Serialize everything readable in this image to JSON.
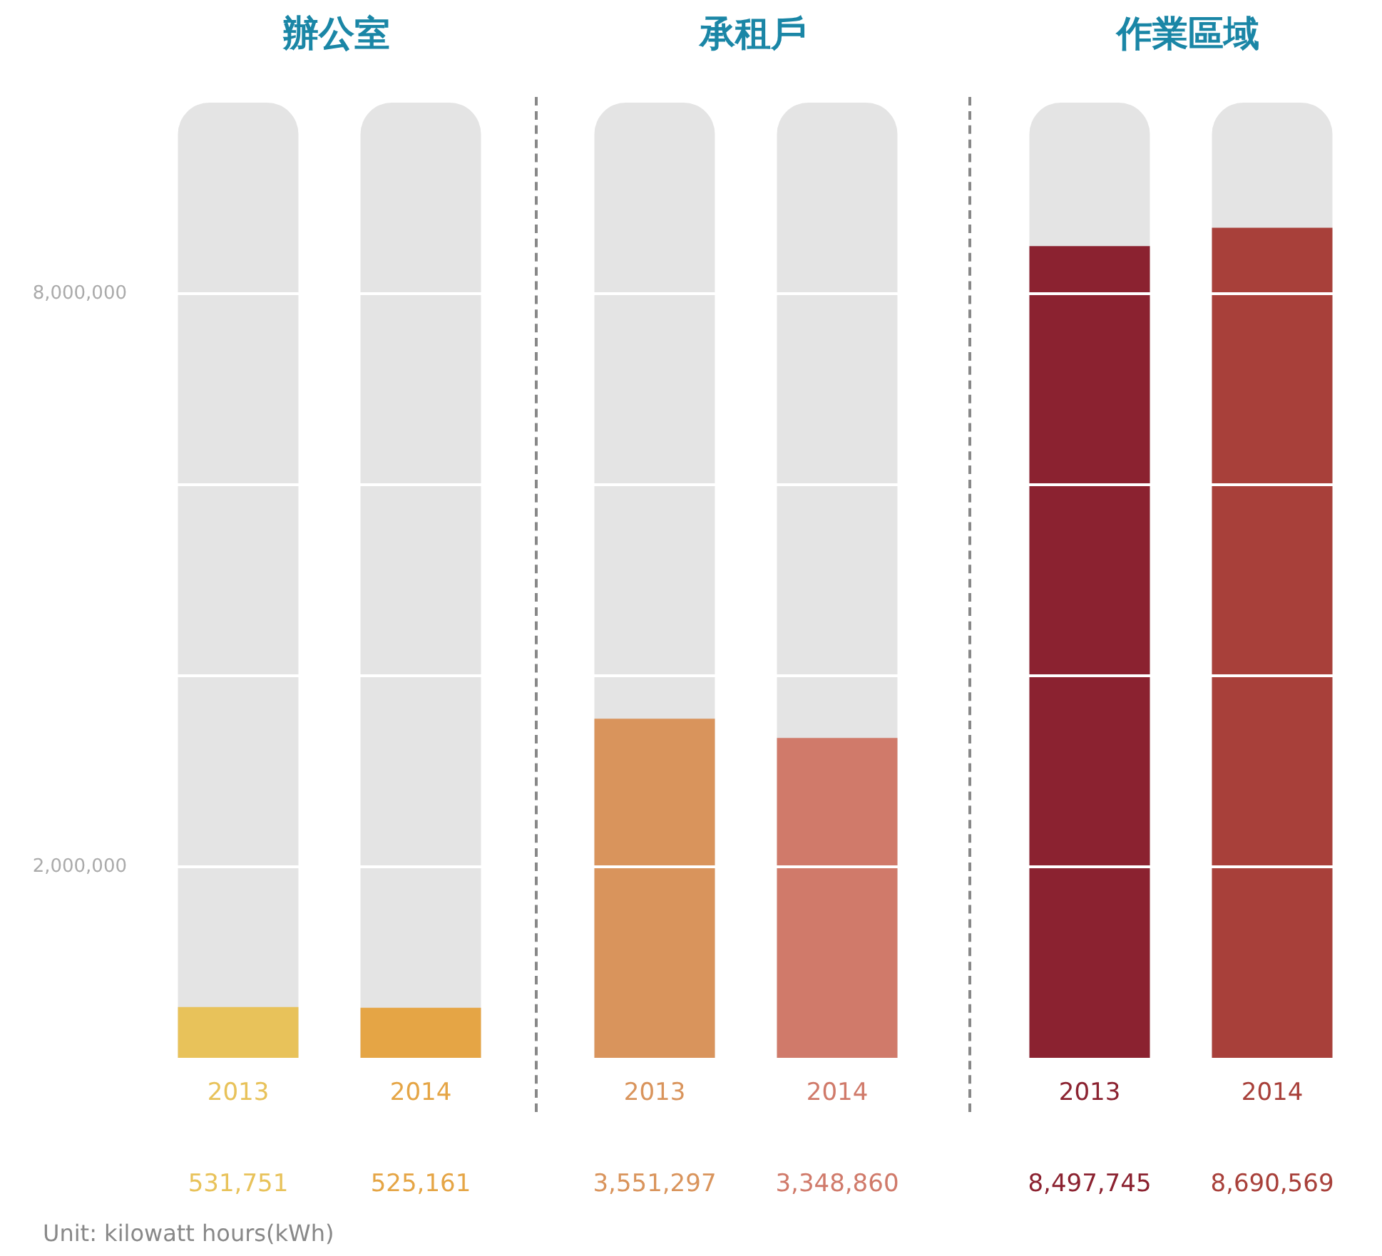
{
  "chart_data": [
    {
      "type": "bar",
      "title": "辦公室",
      "categories": [
        "2013",
        "2014"
      ],
      "values": [
        531751,
        525161
      ],
      "colors": [
        "#e8c25a",
        "#e5a545"
      ],
      "value_labels": [
        "531,751",
        "525,161"
      ],
      "ylim": [
        0,
        10000000
      ],
      "yticks": [
        {
          "value": 2000000,
          "label": "2,000,000"
        },
        {
          "value": 4000000,
          "label": null
        },
        {
          "value": 6000000,
          "label": null
        },
        {
          "value": 8000000,
          "label": "8,000,000"
        }
      ],
      "grid": "y",
      "annotations": [
        "Unit: kilowatt hours(kWh)"
      ]
    },
    {
      "type": "bar",
      "title": "承租戶",
      "categories": [
        "2013",
        "2014"
      ],
      "values": [
        3551297,
        3348860
      ],
      "colors": [
        "#d9945c",
        "#d07a6a"
      ],
      "value_labels": [
        "3,551,297",
        "3,348,860"
      ],
      "ylim": [
        0,
        10000000
      ],
      "yticks": [
        {
          "value": 2000000,
          "label": null
        },
        {
          "value": 4000000,
          "label": null
        },
        {
          "value": 6000000,
          "label": null
        },
        {
          "value": 8000000,
          "label": null
        }
      ],
      "grid": "y",
      "tick_labels": "x"
    },
    {
      "type": "bar",
      "title": "作業區域",
      "categories": [
        "2013",
        "2014"
      ],
      "values": [
        8497745,
        8690569
      ],
      "colors": [
        "#8b2230",
        "#a8403a"
      ],
      "value_labels": [
        "8,497,745",
        "8,690,569"
      ],
      "ylim": [
        0,
        10000000
      ],
      "yticks": [
        {
          "value": 2000000,
          "label": null
        },
        {
          "value": 4000000,
          "label": null
        },
        {
          "value": 6000000,
          "label": null
        },
        {
          "value": 8000000,
          "label": null
        }
      ],
      "grid": "y",
      "tick_labels": "x"
    }
  ]
}
